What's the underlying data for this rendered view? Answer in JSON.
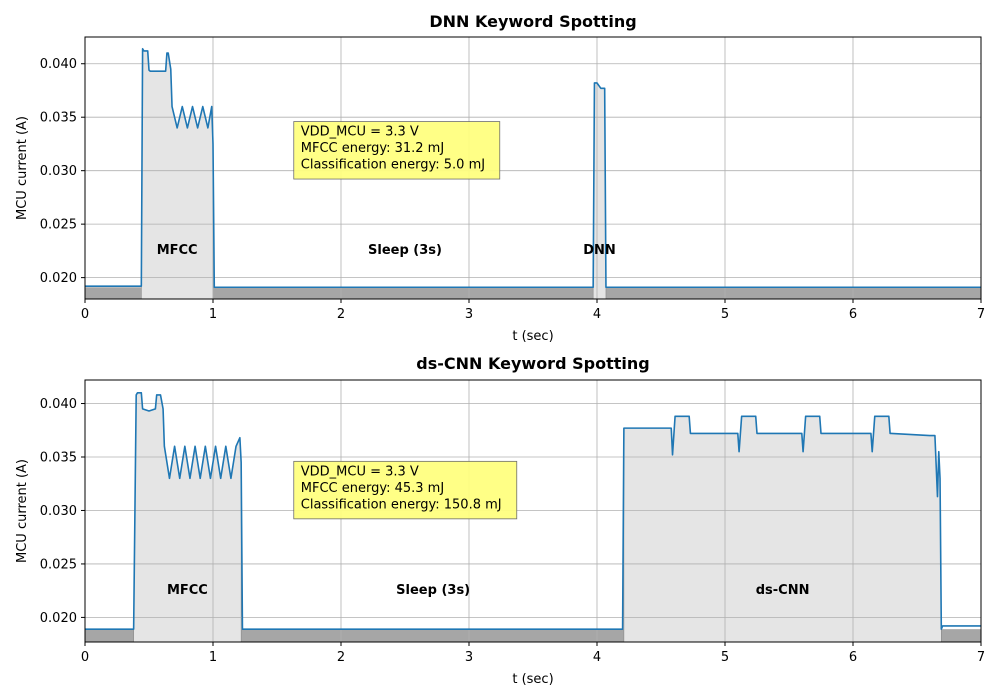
{
  "chart_data": [
    {
      "type": "area",
      "title": "DNN Keyword Spotting",
      "xlabel": "t (sec)",
      "ylabel": "MCU current (A)",
      "xlim": [
        0,
        7
      ],
      "ylim": [
        0.018,
        0.0425
      ],
      "xticks": [
        0,
        1,
        2,
        3,
        4,
        5,
        6,
        7
      ],
      "xtick_labels": [
        "0",
        "1",
        "2",
        "3",
        "4",
        "5",
        "6",
        "7"
      ],
      "yticks": [
        0.02,
        0.025,
        0.03,
        0.035,
        0.04
      ],
      "ytick_labels": [
        "0.020",
        "0.025",
        "0.030",
        "0.035",
        "0.040"
      ],
      "grid": true,
      "baseline_current": 0.0191,
      "series": [
        {
          "x": [
            0,
            0.44,
            0.45,
            0.46,
            0.49,
            0.5,
            0.51,
            0.63,
            0.64,
            0.65,
            0.67,
            0.68,
            0.72,
            0.76,
            0.8,
            0.84,
            0.88,
            0.92,
            0.96,
            0.99,
            1.0,
            1.01,
            3.97,
            3.98,
            4.0,
            4.03,
            4.04,
            4.06,
            4.07,
            4.08,
            7.0
          ],
          "y": [
            0.0192,
            0.0192,
            0.0414,
            0.0412,
            0.0412,
            0.0394,
            0.0393,
            0.0393,
            0.041,
            0.041,
            0.0395,
            0.036,
            0.034,
            0.036,
            0.034,
            0.036,
            0.034,
            0.036,
            0.034,
            0.036,
            0.0325,
            0.0191,
            0.0191,
            0.0382,
            0.0382,
            0.0377,
            0.0377,
            0.0377,
            0.0191,
            0.0191,
            0.0191
          ]
        }
      ],
      "phases": [
        {
          "label": "MFCC",
          "start": 0.44,
          "end": 1.0,
          "label_x": 0.72
        },
        {
          "label": "Sleep (3s)",
          "label_x": 2.5
        },
        {
          "label": "DNN",
          "start": 3.97,
          "end": 4.07,
          "label_x": 4.02
        }
      ],
      "phase_label_y": 0.0222,
      "annotation": {
        "lines": [
          "VDD_MCU = 3.3 V",
          "MFCC energy: 31.2 mJ",
          "Classification energy: 5.0 mJ"
        ],
        "x": 1.67,
        "y_top": 0.0345
      },
      "colors": {
        "line": "#1f77b4",
        "active_fill": "#e5e5e5",
        "sleep_fill": "#a6a6a6",
        "annotation_bg": "#ffff80"
      }
    },
    {
      "type": "area",
      "title": "ds-CNN Keyword Spotting",
      "xlabel": "t (sec)",
      "ylabel": "MCU current (A)",
      "xlim": [
        0,
        7
      ],
      "ylim": [
        0.0177,
        0.0422
      ],
      "xticks": [
        0,
        1,
        2,
        3,
        4,
        5,
        6,
        7
      ],
      "xtick_labels": [
        "0",
        "1",
        "2",
        "3",
        "4",
        "5",
        "6",
        "7"
      ],
      "yticks": [
        0.02,
        0.025,
        0.03,
        0.035,
        0.04
      ],
      "ytick_labels": [
        "0.020",
        "0.025",
        "0.030",
        "0.035",
        "0.040"
      ],
      "grid": true,
      "baseline_current": 0.0189,
      "series": [
        {
          "x": [
            0,
            0.38,
            0.4,
            0.41,
            0.44,
            0.45,
            0.5,
            0.55,
            0.56,
            0.59,
            0.61,
            0.62,
            0.66,
            0.7,
            0.74,
            0.78,
            0.82,
            0.86,
            0.9,
            0.94,
            0.98,
            1.02,
            1.06,
            1.1,
            1.14,
            1.18,
            1.21,
            1.22,
            1.23,
            4.2,
            4.21,
            4.22,
            4.58,
            4.59,
            4.61,
            4.62,
            4.72,
            4.73,
            4.74,
            5.1,
            5.11,
            5.13,
            5.14,
            5.24,
            5.25,
            5.26,
            5.6,
            5.61,
            5.63,
            5.64,
            5.74,
            5.75,
            5.76,
            6.14,
            6.15,
            6.17,
            6.18,
            6.28,
            6.29,
            6.3,
            6.6,
            6.64,
            6.66,
            6.67,
            6.68,
            6.69,
            6.7,
            7.0
          ],
          "y": [
            0.0189,
            0.0189,
            0.0408,
            0.041,
            0.041,
            0.0395,
            0.0393,
            0.0395,
            0.0408,
            0.0408,
            0.0395,
            0.036,
            0.033,
            0.036,
            0.033,
            0.036,
            0.033,
            0.036,
            0.033,
            0.036,
            0.033,
            0.036,
            0.033,
            0.036,
            0.033,
            0.036,
            0.0368,
            0.0345,
            0.0189,
            0.0189,
            0.0377,
            0.0377,
            0.0377,
            0.0352,
            0.0388,
            0.0388,
            0.0388,
            0.0372,
            0.0372,
            0.0372,
            0.0355,
            0.0388,
            0.0388,
            0.0388,
            0.0372,
            0.0372,
            0.0372,
            0.0355,
            0.0388,
            0.0388,
            0.0388,
            0.0372,
            0.0372,
            0.0372,
            0.0355,
            0.0388,
            0.0388,
            0.0388,
            0.0372,
            0.0372,
            0.037,
            0.037,
            0.0313,
            0.0355,
            0.033,
            0.0189,
            0.0192,
            0.0192
          ]
        }
      ],
      "phases": [
        {
          "label": "MFCC",
          "start": 0.38,
          "end": 1.22,
          "label_x": 0.8
        },
        {
          "label": "Sleep (3s)",
          "label_x": 2.72
        },
        {
          "label": "ds-CNN",
          "start": 4.21,
          "end": 6.69,
          "label_x": 5.45
        }
      ],
      "phase_label_y": 0.0222,
      "annotation": {
        "lines": [
          "VDD_MCU = 3.3 V",
          "MFCC energy: 45.3 mJ",
          "Classification energy: 150.8 mJ"
        ],
        "x": 1.67,
        "y_top": 0.0345
      },
      "colors": {
        "line": "#1f77b4",
        "active_fill": "#e5e5e5",
        "sleep_fill": "#a6a6a6",
        "annotation_bg": "#ffff80"
      }
    }
  ]
}
